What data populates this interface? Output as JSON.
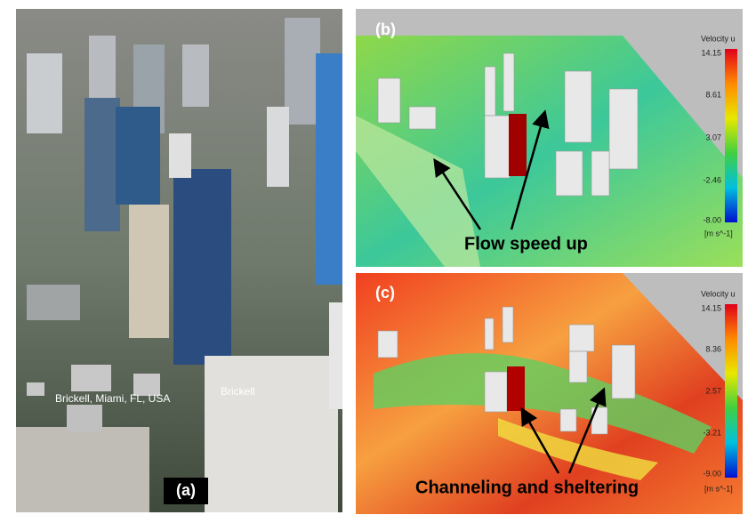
{
  "panel_a": {
    "label": "(a)",
    "location": "Brickell, Miami, FL, USA",
    "place": "Brickell"
  },
  "panel_b": {
    "label": "(b)",
    "colorbar_title": "Velocity u",
    "colorbar_ticks": [
      "14.15",
      "8.61",
      "3.07",
      "-2.46",
      "-8.00"
    ],
    "colorbar_unit": "[m s^-1]",
    "annotation": "Flow speed up"
  },
  "panel_c": {
    "label": "(c)",
    "colorbar_title": "Velocity u",
    "colorbar_ticks": [
      "14.15",
      "8.36",
      "2.57",
      "-3.21",
      "-9.00"
    ],
    "colorbar_unit": "[m s^-1]",
    "annotation": "Channeling and sheltering"
  }
}
